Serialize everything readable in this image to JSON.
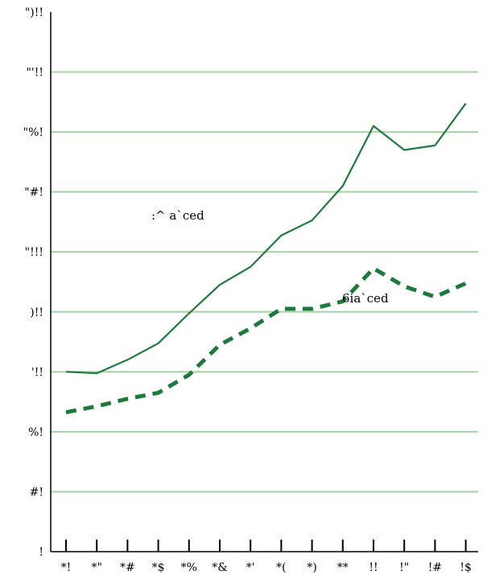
{
  "chart_data": {
    "type": "line",
    "title": "",
    "xlabel": "",
    "ylabel": "",
    "x": [
      "*!",
      "*\"",
      "*#",
      "*$",
      "*%",
      "*&",
      "*'",
      "*(",
      "*)",
      "**",
      "!!",
      "!\"",
      "!#",
      "!$"
    ],
    "y_ticks": [
      "!",
      "#!",
      "%!",
      "'!!",
      ")!!",
      "\"!!!",
      "\"#!",
      "\"%!",
      "\"'!!",
      "\")!!"
    ],
    "ylim": [
      0,
      1800
    ],
    "grid": true,
    "series": [
      {
        "name": ":^ a`ced",
        "style": "solid",
        "color": "#1e7a3c",
        "values": [
          600,
          595,
          640,
          695,
          795,
          890,
          950,
          1055,
          1105,
          1220,
          1420,
          1340,
          1355,
          1495
        ]
      },
      {
        "name": "6ia`ced",
        "style": "dashed",
        "color": "#1e7a3c",
        "values": [
          465,
          485,
          510,
          530,
          590,
          690,
          745,
          810,
          810,
          835,
          945,
          885,
          850,
          895
        ]
      }
    ],
    "colors": {
      "grid": "#a6d3a6",
      "axis": "#000000",
      "line": "#1e7a3c"
    }
  }
}
